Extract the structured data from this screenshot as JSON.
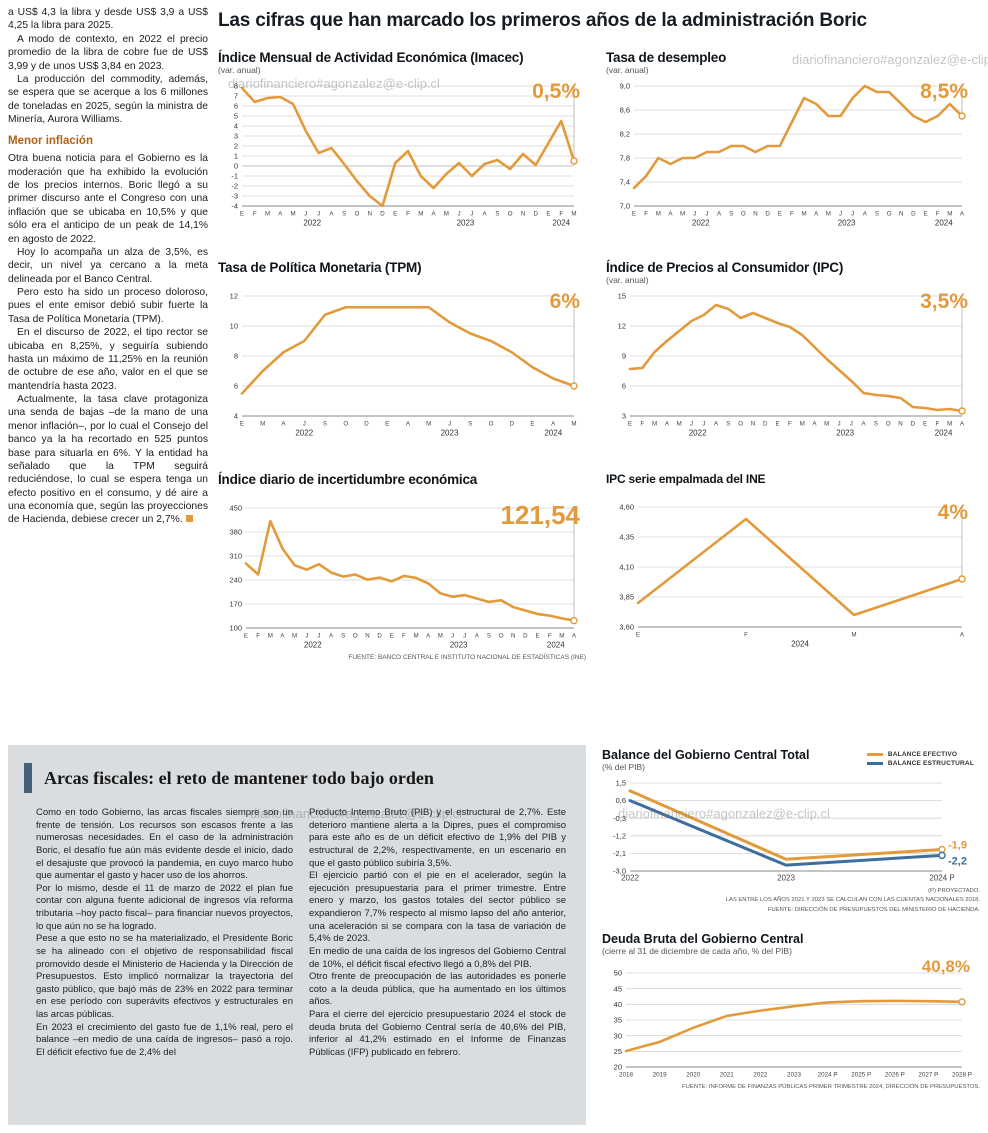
{
  "watermark": "diariofinanciero#agonzalez@e-clip.cl",
  "main_title": "Las cifras que han marcado los primeros años de la administración Boric",
  "article": {
    "intro_paragraphs": [
      "a US$ 4,3 la libra y desde US$ 3,9 a US$ 4,25 la libra para 2025.",
      "A modo de contexto, en 2022 el precio promedio de la libra de cobre fue de US$ 3,99 y de unos US$ 3,84 en 2023.",
      "La producción del commodity, además, se espera que se acerque a los 6 millones de toneladas en 2025, según la ministra de Minería, Aurora Williams."
    ],
    "subhead": "Menor inflación",
    "inflation_paragraphs": [
      "Otra buena noticia para el Gobierno es la moderación que ha exhibido la evolución de los precios internos. Boric llegó a su primer discurso ante el Congreso con una inflación que se ubicaba en 10,5% y que sólo era el anticipo de un peak de 14,1% en agosto de 2022.",
      "Hoy lo acompaña un alza de 3,5%, es decir, un nivel ya cercano a la meta delineada por el Banco Central.",
      "Pero esto ha sido un proceso doloroso, pues el ente emisor debió subir fuerte la Tasa de Política Monetaria (TPM).",
      "En el discurso de 2022, el tipo rector se ubicaba en 8,25%, y seguiría subiendo hasta un máximo de 11,25% en la reunión de octubre de ese año, valor en el que se mantendría hasta 2023.",
      "Actualmente, la tasa clave protagoniza una senda de bajas –de la mano de una menor inflación–, por lo cual el Consejo del banco ya la ha recortado en 525 puntos base para situarla en 6%. Y la entidad ha señalado que la TPM seguirá reduciéndose, lo cual se espera tenga un efecto positivo en el consumo, y dé aire a una economía que, según las proyecciones de Hacienda, debiese crecer un 2,7%."
    ]
  },
  "source_top": "FUENTE: BANCO CENTRAL E INSTITUTO NACIONAL DE ESTADÍSTICAS (INE)",
  "fiscal": {
    "title": "Arcas fiscales: el reto de mantener todo bajo orden",
    "col1": [
      "Como en todo Gobierno, las arcas fiscales siempre son un frente de tensión. Los recursos son escasos frente a las numerosas necesidades. En el caso de la administración Boric, el desafío fue aún más evidente desde el inicio, dado el desajuste que provocó la pandemia, en cuyo marco hubo que aumentar el gasto y hacer uso de los ahorros.",
      "Por lo mismo, desde el 11 de marzo de 2022 el plan fue contar con alguna fuente adicional de ingresos vía reforma tributaria –hoy pacto fiscal– para financiar nuevos proyectos, lo que aún no se ha logrado.",
      "Pese a que esto no se ha materializado, el Presidente Boric se ha alineado con el objetivo de responsabilidad fiscal promovido desde el Ministerio de Hacienda y la Dirección de Presupuestos. Esto implicó normalizar la trayectoria del gasto público, que bajó más de 23% en 2022 para terminar en ese período con superávits efectivos y estructurales en las arcas públicas.",
      "En 2023 el crecimiento del gasto fue de 1,1% real, pero el balance –en medio de una caída de ingresos– pasó a rojo. El déficit efectivo fue de 2,4% del"
    ],
    "col2": [
      "Producto Interno Bruto (PIB) y el estructural de 2,7%. Este deterioro mantiene alerta a la Dipres, pues el compromiso para este año es de un déficit efectivo de 1,9% del PIB y estructural de 2,2%, respectivamente, en un escenario en que el gasto público subiría 3,5%.",
      "El ejercicio partió con el pie en el acelerador, según la ejecución presupuestaria para el primer trimestre. Entre enero y marzo, los gastos totales del sector público se expandieron 7,7% respecto al mismo lapso del año anterior, una aceleración si se compara con la tasa de variación de 5,4% de 2023.",
      "En medio de una caída de los ingresos del Gobierno Central de 10%, el déficit fiscal efectivo llegó a 0,8% del PIB.",
      "Otro frente de preocupación de las autoridades es ponerle coto a la deuda pública, que ha aumentado en los últimos años.",
      "Para el cierre del ejercicio presupuestario 2024 el stock de deuda bruta del Gobierno Central sería de 40,6% del PIB, inferior al 41,2% estimado en el Informe de Finanzas Públicas (IFP) publicado en febrero."
    ]
  },
  "balance_notes": [
    "(P) PROYECTADO.",
    "LAS ENTRE LOS AÑOS 2021 Y 2023 SE CALCULAN CON LAS CUENTAS NACIONALES 2018.",
    "FUENTE: DIRECCIÓN DE PRESUPUESTOS DEL MINISTERIO DE HACIENDA."
  ],
  "debt_note": "FUENTE: INFORME DE FINANZAS PÚBLICAS PRIMER TRIMESTRE 2024, DIRECCIÓN DE PRESUPUESTOS.",
  "colors": {
    "orange": "#E29A3A",
    "blue": "#3C6E9E",
    "panel": "#d9dde0",
    "accent_bar": "#44607B",
    "subhead": "#B26414"
  },
  "chart_data": [
    {
      "type": "line",
      "title": "Índice Mensual de Actividad Económica (Imacec)",
      "subtitle": "(var. anual)",
      "big_label": "0,5%",
      "ylim": [
        -4,
        8
      ],
      "ytick_vals": [
        8,
        7,
        6,
        5,
        4,
        3,
        2,
        1,
        0,
        -1,
        -2,
        -3,
        -4
      ],
      "ytick_labels": [
        "8",
        "7",
        "6",
        "5",
        "4",
        "3",
        "2",
        "1",
        "0",
        "-1",
        "-2",
        "-3",
        "-4"
      ],
      "x_labels": [
        "E",
        "F",
        "M",
        "A",
        "M",
        "J",
        "J",
        "A",
        "S",
        "O",
        "N",
        "D",
        "E",
        "F",
        "M",
        "A",
        "M",
        "J",
        "J",
        "A",
        "S",
        "O",
        "N",
        "D",
        "E",
        "F",
        "M"
      ],
      "year_ticks": [
        {
          "label": "2022",
          "index": 5.5
        },
        {
          "label": "2023",
          "index": 17.5
        },
        {
          "label": "2024",
          "index": 25
        }
      ],
      "values": [
        7.8,
        6.4,
        6.8,
        6.9,
        6.2,
        3.5,
        1.3,
        1.8,
        0.2,
        -1.5,
        -3.0,
        -4.0,
        0.3,
        1.5,
        -1.0,
        -2.2,
        -0.8,
        0.3,
        -1.0,
        0.2,
        0.6,
        -0.3,
        1.2,
        0.1,
        2.3,
        4.5,
        0.5
      ],
      "margins": {
        "l": 24,
        "r": 14,
        "t": 8,
        "b": 22
      }
    },
    {
      "type": "line",
      "title": "Tasa de desempleo",
      "subtitle": "(var. anual)",
      "big_label": "8,5%",
      "ylim": [
        7.0,
        9.0
      ],
      "ytick_vals": [
        9.0,
        8.6,
        8.2,
        7.8,
        7.4,
        7.0
      ],
      "ytick_labels": [
        "9,0",
        "8,6",
        "8,2",
        "7,8",
        "7,4",
        "7,0"
      ],
      "x_labels": [
        "E",
        "F",
        "M",
        "A",
        "M",
        "J",
        "J",
        "A",
        "S",
        "O",
        "N",
        "D",
        "E",
        "F",
        "M",
        "A",
        "M",
        "J",
        "J",
        "A",
        "S",
        "O",
        "N",
        "D",
        "E",
        "F",
        "M",
        "A"
      ],
      "year_ticks": [
        {
          "label": "2022",
          "index": 5.5
        },
        {
          "label": "2023",
          "index": 17.5
        },
        {
          "label": "2024",
          "index": 25.5
        }
      ],
      "values": [
        7.3,
        7.5,
        7.8,
        7.7,
        7.8,
        7.8,
        7.9,
        7.9,
        8.0,
        8.0,
        7.9,
        8.0,
        8.0,
        8.4,
        8.8,
        8.7,
        8.5,
        8.5,
        8.8,
        9.0,
        8.9,
        8.9,
        8.7,
        8.5,
        8.4,
        8.5,
        8.7,
        8.5
      ],
      "margins": {
        "l": 28,
        "r": 14,
        "t": 8,
        "b": 22
      }
    },
    {
      "type": "line",
      "title": "Tasa de Política Monetaria (TPM)",
      "subtitle": "",
      "big_label": "6%",
      "ylim": [
        4,
        12
      ],
      "ytick_vals": [
        12,
        10,
        8,
        6,
        4
      ],
      "ytick_labels": [
        "12",
        "10",
        "8",
        "6",
        "4"
      ],
      "x_labels": [
        "E",
        "M",
        "A",
        "J",
        "S",
        "O",
        "D",
        "E",
        "A",
        "M",
        "J",
        "S",
        "O",
        "D",
        "E",
        "A",
        "M"
      ],
      "year_ticks": [
        {
          "label": "2022",
          "index": 3
        },
        {
          "label": "2023",
          "index": 10
        },
        {
          "label": "2024",
          "index": 15
        }
      ],
      "values": [
        5.5,
        7.0,
        8.25,
        9.0,
        10.75,
        11.25,
        11.25,
        11.25,
        11.25,
        11.25,
        10.25,
        9.5,
        9.0,
        8.25,
        7.25,
        6.5,
        6.0
      ],
      "margins": {
        "l": 24,
        "r": 14,
        "t": 8,
        "b": 22
      }
    },
    {
      "type": "line",
      "title": "Índice de Precios al Consumidor (IPC)",
      "subtitle": "(var. anual)",
      "big_label": "3,5%",
      "ylim": [
        3,
        15
      ],
      "ytick_vals": [
        15,
        12,
        9,
        6,
        3
      ],
      "ytick_labels": [
        "15",
        "12",
        "9",
        "6",
        "3"
      ],
      "x_labels": [
        "E",
        "F",
        "M",
        "A",
        "M",
        "J",
        "J",
        "A",
        "S",
        "O",
        "N",
        "D",
        "E",
        "F",
        "M",
        "A",
        "M",
        "J",
        "J",
        "A",
        "S",
        "O",
        "N",
        "D",
        "E",
        "F",
        "M",
        "A"
      ],
      "year_ticks": [
        {
          "label": "2022",
          "index": 5.5
        },
        {
          "label": "2023",
          "index": 17.5
        },
        {
          "label": "2024",
          "index": 25.5
        }
      ],
      "values": [
        7.7,
        7.8,
        9.4,
        10.5,
        11.5,
        12.5,
        13.1,
        14.1,
        13.7,
        12.8,
        13.3,
        12.8,
        12.3,
        11.9,
        11.1,
        9.9,
        8.7,
        7.6,
        6.5,
        5.3,
        5.1,
        5.0,
        4.8,
        3.9,
        3.8,
        3.6,
        3.7,
        3.5
      ],
      "margins": {
        "l": 24,
        "r": 14,
        "t": 8,
        "b": 22
      }
    },
    {
      "type": "line",
      "title": "Índice diario de incertidumbre económica",
      "subtitle": "",
      "big_label": "121,54",
      "ylim": [
        100,
        450
      ],
      "ytick_vals": [
        450,
        380,
        310,
        240,
        170,
        100
      ],
      "ytick_labels": [
        "450",
        "380",
        "310",
        "240",
        "170",
        "100"
      ],
      "x_labels": [
        "E",
        "F",
        "M",
        "A",
        "M",
        "J",
        "J",
        "A",
        "S",
        "O",
        "N",
        "D",
        "E",
        "F",
        "M",
        "A",
        "M",
        "J",
        "J",
        "A",
        "S",
        "O",
        "N",
        "D",
        "E",
        "F",
        "M",
        "A"
      ],
      "year_ticks": [
        {
          "label": "2022",
          "index": 5.5
        },
        {
          "label": "2023",
          "index": 17.5
        },
        {
          "label": "2024",
          "index": 25.5
        }
      ],
      "values": [
        288,
        256,
        412,
        332,
        283,
        270,
        286,
        262,
        250,
        256,
        241,
        247,
        236,
        252,
        246,
        230,
        201,
        191,
        196,
        186,
        176,
        181,
        161,
        151,
        141,
        136,
        128,
        121.54
      ],
      "margins": {
        "l": 28,
        "r": 14,
        "t": 8,
        "b": 22
      }
    },
    {
      "type": "line",
      "title": "IPC serie empalmada del INE",
      "subtitle": "",
      "big_label": "4%",
      "ylim": [
        3.6,
        4.6
      ],
      "ytick_vals": [
        4.6,
        4.35,
        4.1,
        3.85,
        3.6
      ],
      "ytick_labels": [
        "4,60",
        "4,35",
        "4,10",
        "3,85",
        "3,60"
      ],
      "x_labels": [
        "E",
        "F",
        "M",
        "A"
      ],
      "year_ticks": [
        {
          "label": "2024",
          "index": 1.5
        }
      ],
      "values": [
        3.8,
        4.5,
        3.7,
        4.0
      ],
      "margins": {
        "l": 32,
        "r": 14,
        "t": 8,
        "b": 22
      }
    },
    {
      "type": "line",
      "title": "Balance del Gobierno Central Total",
      "subtitle": "(% del PIB)",
      "legend": [
        "BALANCE EFECTIVO",
        "BALANCE ESTRUCTURAL"
      ],
      "ylim": [
        -3.0,
        1.5
      ],
      "ytick_vals": [
        1.5,
        0.6,
        -0.3,
        -1.2,
        -2.1,
        -3.0
      ],
      "ytick_labels": [
        "1,5",
        "0,6",
        "-0,3",
        "-1,2",
        "-2,1",
        "-3,0"
      ],
      "x_labels": [
        "2022",
        "2023",
        "2024 P"
      ],
      "x_label_size": 8,
      "series": [
        {
          "name": "BALANCE EFECTIVO",
          "color": "orange",
          "values": [
            1.1,
            -2.4,
            -1.9
          ],
          "end_label": "-1,9",
          "end_label_dy": -1
        },
        {
          "name": "BALANCE ESTRUCTURAL",
          "color": "blue",
          "values": [
            0.6,
            -2.7,
            -2.2
          ],
          "end_label": "-2,2",
          "end_label_dy": 9
        }
      ],
      "end_marker": false,
      "stroke": 3,
      "margins": {
        "l": 28,
        "r": 38,
        "t": 8,
        "b": 16
      }
    },
    {
      "type": "line",
      "title": "Deuda Bruta del Gobierno Central",
      "subtitle": "(cierre al 31 de diciembre de cada año, % del PIB)",
      "big_label": "40,8%",
      "ylim": [
        20,
        50
      ],
      "ytick_vals": [
        50,
        45,
        40,
        35,
        30,
        25,
        20
      ],
      "ytick_labels": [
        "50",
        "45",
        "40",
        "35",
        "30",
        "25",
        "20"
      ],
      "x_labels": [
        "2018",
        "2019",
        "2020",
        "2021",
        "2022",
        "2023",
        "2024 P",
        "2025 P",
        "2026 P",
        "2027 P",
        "2028 P"
      ],
      "x_label_size": 6.3,
      "values": [
        25.1,
        28,
        32.5,
        36.3,
        38,
        39.4,
        40.6,
        41,
        41.1,
        41,
        40.8
      ],
      "end_marker": false,
      "stroke": 2.6,
      "margins": {
        "l": 24,
        "r": 18,
        "t": 14,
        "b": 16
      }
    }
  ]
}
